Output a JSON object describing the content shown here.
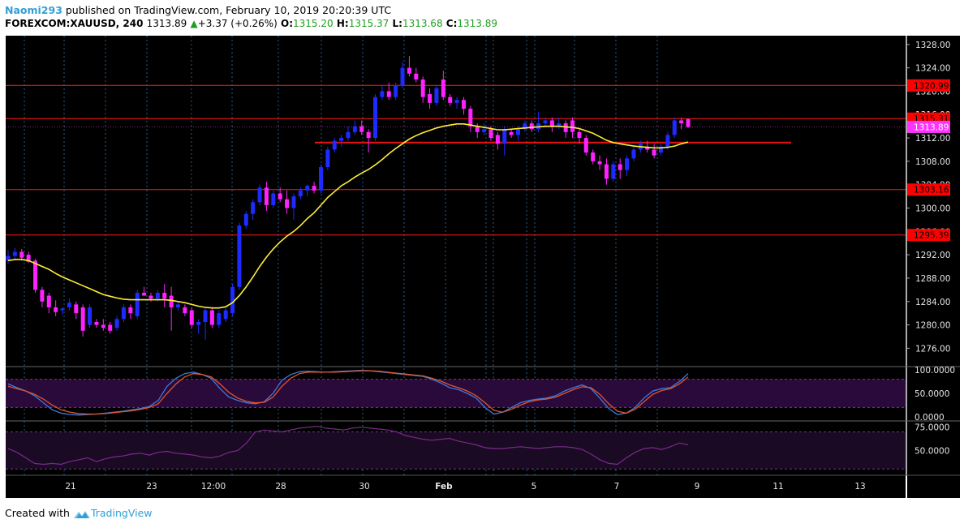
{
  "header": {
    "author": "Naomi293",
    "published_text": "published on TradingView.com, February 10, 2019 20:20:39 UTC",
    "symbol": "FOREXCOM:XAUUSD, 240",
    "last": "1313.89",
    "change_arrow": "▲",
    "change": "+3.37 (+0.26%)",
    "o_label": "O:",
    "o_value": "1315.20",
    "h_label": "H:",
    "h_value": "1315.37",
    "l_label": "L:",
    "l_value": "1313.68",
    "c_label": "C:",
    "c_value": "1313.89"
  },
  "footer": {
    "created_with": "Created with",
    "brand": "TradingView"
  },
  "colors": {
    "background": "#000000",
    "bull": "#1e2bff",
    "bear": "#ff22ff",
    "ma": "#ffee33",
    "level_line": "#ff1a1a",
    "level_label_bg": "#ff0000",
    "current_price_bg": "#ff33ff",
    "stoch_k": "#3d7bdb",
    "stoch_d": "#e0552b",
    "stoch_band": "#2a0a3a",
    "rsi_line": "#7a2a8a",
    "rsi_band": "#1a0a24",
    "grid_vertical": "#2a5d8a"
  },
  "chart_data": [
    {
      "type": "candlestick",
      "title": "XAUUSD 240",
      "x_tick_labels": [
        "21",
        "23",
        "12:00",
        "28",
        "30",
        "Feb",
        "5",
        "7",
        "9",
        "11",
        "13"
      ],
      "y_tick_labels": [
        "1276.00",
        "1280.00",
        "1284.00",
        "1288.00",
        "1292.00",
        "1296.00",
        "1300.00",
        "1304.00",
        "1308.00",
        "1312.00",
        "1316.00",
        "1320.00",
        "1324.00",
        "1328.00"
      ],
      "ylim": [
        1273.0,
        1329.5
      ],
      "horizontal_levels": [
        1320.99,
        1315.31,
        1303.16,
        1295.39
      ],
      "level_labels": [
        "1320.99",
        "1315.31",
        "1303.16",
        "1295.39"
      ],
      "current_price_label": "1313.89",
      "current_price": 1313.89,
      "short_level": 1311.2,
      "ohlc": [
        [
          1291.0,
          1292.8,
          1290.5,
          1291.8
        ],
        [
          1291.8,
          1293.2,
          1291.0,
          1292.5
        ],
        [
          1292.5,
          1293.0,
          1291.0,
          1291.5
        ],
        [
          1292.0,
          1292.5,
          1290.6,
          1290.8
        ],
        [
          1291.0,
          1291.3,
          1285.5,
          1286.0
        ],
        [
          1286.0,
          1286.5,
          1283.0,
          1284.0
        ],
        [
          1285.0,
          1285.5,
          1282.0,
          1283.0
        ],
        [
          1283.0,
          1284.2,
          1281.5,
          1282.2
        ],
        [
          1282.5,
          1283.0,
          1281.7,
          1282.8
        ],
        [
          1283.0,
          1284.5,
          1282.5,
          1283.8
        ],
        [
          1283.5,
          1284.0,
          1281.0,
          1282.0
        ],
        [
          1283.0,
          1283.5,
          1278.0,
          1279.0
        ],
        [
          1280.0,
          1283.5,
          1279.5,
          1283.0
        ],
        [
          1280.5,
          1281.0,
          1279.5,
          1280.0
        ],
        [
          1280.0,
          1281.0,
          1279.0,
          1279.5
        ],
        [
          1280.0,
          1280.5,
          1278.5,
          1279.0
        ],
        [
          1279.5,
          1281.5,
          1279.0,
          1281.0
        ],
        [
          1281.0,
          1283.5,
          1280.5,
          1283.0
        ],
        [
          1283.0,
          1283.5,
          1281.0,
          1282.0
        ],
        [
          1281.5,
          1286.0,
          1281.0,
          1285.5
        ],
        [
          1285.5,
          1286.5,
          1285.0,
          1285.0
        ],
        [
          1285.0,
          1285.5,
          1284.0,
          1284.5
        ],
        [
          1284.5,
          1286.0,
          1284.0,
          1285.5
        ],
        [
          1285.5,
          1287.0,
          1283.0,
          1284.5
        ],
        [
          1285.0,
          1286.5,
          1279.0,
          1283.0
        ],
        [
          1283.0,
          1284.0,
          1282.5,
          1283.5
        ],
        [
          1283.0,
          1283.5,
          1281.5,
          1282.0
        ],
        [
          1282.5,
          1283.0,
          1279.5,
          1280.0
        ],
        [
          1280.0,
          1281.0,
          1278.5,
          1280.5
        ],
        [
          1280.5,
          1283.0,
          1277.5,
          1282.5
        ],
        [
          1282.5,
          1283.0,
          1279.5,
          1280.0
        ],
        [
          1280.0,
          1282.5,
          1279.5,
          1282.0
        ],
        [
          1281.0,
          1283.0,
          1280.5,
          1282.5
        ],
        [
          1282.0,
          1287.0,
          1281.5,
          1286.5
        ],
        [
          1286.5,
          1297.5,
          1286.0,
          1297.0
        ],
        [
          1297.0,
          1299.5,
          1296.5,
          1299.0
        ],
        [
          1299.0,
          1301.5,
          1298.0,
          1301.0
        ],
        [
          1301.0,
          1304.0,
          1300.5,
          1303.5
        ],
        [
          1303.5,
          1304.5,
          1299.5,
          1300.5
        ],
        [
          1300.5,
          1303.0,
          1300.0,
          1302.5
        ],
        [
          1302.5,
          1303.5,
          1301.0,
          1301.5
        ],
        [
          1301.5,
          1303.0,
          1299.0,
          1300.0
        ],
        [
          1300.0,
          1302.5,
          1298.0,
          1302.0
        ],
        [
          1302.0,
          1303.5,
          1301.5,
          1303.0
        ],
        [
          1303.0,
          1304.0,
          1302.0,
          1303.8
        ],
        [
          1303.8,
          1304.5,
          1302.5,
          1303.0
        ],
        [
          1303.0,
          1307.5,
          1302.5,
          1307.0
        ],
        [
          1307.0,
          1310.5,
          1306.5,
          1310.0
        ],
        [
          1310.0,
          1312.0,
          1309.5,
          1311.5
        ],
        [
          1311.5,
          1312.5,
          1310.5,
          1312.0
        ],
        [
          1312.0,
          1314.0,
          1311.5,
          1313.0
        ],
        [
          1313.0,
          1315.0,
          1312.5,
          1314.0
        ],
        [
          1314.0,
          1315.0,
          1312.5,
          1313.0
        ],
        [
          1313.0,
          1313.5,
          1309.5,
          1312.0
        ],
        [
          1312.0,
          1319.5,
          1311.5,
          1319.0
        ],
        [
          1319.0,
          1321.0,
          1318.5,
          1320.0
        ],
        [
          1320.0,
          1321.5,
          1318.5,
          1319.0
        ],
        [
          1319.0,
          1321.5,
          1318.5,
          1321.0
        ],
        [
          1321.0,
          1325.0,
          1320.5,
          1324.0
        ],
        [
          1324.0,
          1326.0,
          1322.5,
          1323.0
        ],
        [
          1323.0,
          1324.0,
          1321.5,
          1322.0
        ],
        [
          1322.0,
          1322.5,
          1318.0,
          1319.0
        ],
        [
          1319.5,
          1320.5,
          1317.0,
          1318.0
        ],
        [
          1318.0,
          1321.0,
          1317.5,
          1320.5
        ],
        [
          1322.0,
          1323.5,
          1318.5,
          1319.0
        ],
        [
          1319.0,
          1319.5,
          1317.5,
          1318.0
        ],
        [
          1318.0,
          1319.0,
          1317.0,
          1318.5
        ],
        [
          1318.5,
          1319.0,
          1316.0,
          1317.0
        ],
        [
          1317.0,
          1317.5,
          1313.0,
          1314.0
        ],
        [
          1314.0,
          1314.5,
          1312.0,
          1313.0
        ],
        [
          1313.0,
          1314.5,
          1312.5,
          1313.5
        ],
        [
          1313.5,
          1314.0,
          1311.5,
          1312.0
        ],
        [
          1312.5,
          1313.0,
          1310.0,
          1311.0
        ],
        [
          1311.0,
          1314.0,
          1309.0,
          1313.5
        ],
        [
          1313.0,
          1313.5,
          1312.0,
          1312.5
        ],
        [
          1312.5,
          1314.0,
          1311.5,
          1313.5
        ],
        [
          1313.5,
          1315.0,
          1313.0,
          1314.5
        ],
        [
          1314.5,
          1315.0,
          1313.0,
          1313.5
        ],
        [
          1313.5,
          1316.5,
          1313.0,
          1314.5
        ],
        [
          1314.5,
          1315.5,
          1314.0,
          1315.0
        ],
        [
          1315.0,
          1315.5,
          1313.0,
          1314.0
        ],
        [
          1314.0,
          1315.5,
          1313.5,
          1314.5
        ],
        [
          1314.5,
          1315.0,
          1312.0,
          1313.0
        ],
        [
          1315.0,
          1315.5,
          1312.0,
          1313.0
        ],
        [
          1313.0,
          1313.5,
          1311.0,
          1312.0
        ],
        [
          1312.0,
          1312.5,
          1309.0,
          1309.5
        ],
        [
          1309.5,
          1310.0,
          1307.5,
          1308.0
        ],
        [
          1308.0,
          1309.0,
          1306.5,
          1307.5
        ],
        [
          1307.5,
          1308.5,
          1304.0,
          1305.0
        ],
        [
          1305.0,
          1308.0,
          1304.5,
          1307.5
        ],
        [
          1307.5,
          1308.5,
          1305.0,
          1306.5
        ],
        [
          1306.5,
          1309.0,
          1305.5,
          1308.5
        ],
        [
          1308.5,
          1310.5,
          1308.0,
          1310.0
        ],
        [
          1310.0,
          1311.5,
          1309.5,
          1311.0
        ],
        [
          1310.5,
          1311.5,
          1309.5,
          1310.0
        ],
        [
          1310.0,
          1311.0,
          1308.5,
          1309.0
        ],
        [
          1309.5,
          1311.0,
          1309.0,
          1310.5
        ],
        [
          1310.5,
          1313.0,
          1310.0,
          1312.5
        ],
        [
          1312.5,
          1315.5,
          1312.0,
          1315.0
        ],
        [
          1315.0,
          1315.5,
          1313.5,
          1314.5
        ],
        [
          1315.2,
          1315.37,
          1313.68,
          1313.89
        ]
      ],
      "ma_series": [
        1291.0,
        1291.2,
        1291.2,
        1291.0,
        1290.5,
        1290.0,
        1289.5,
        1288.8,
        1288.2,
        1287.7,
        1287.2,
        1286.7,
        1286.2,
        1285.7,
        1285.2,
        1284.9,
        1284.6,
        1284.4,
        1284.3,
        1284.3,
        1284.3,
        1284.3,
        1284.3,
        1284.3,
        1284.2,
        1284.0,
        1283.8,
        1283.5,
        1283.2,
        1283.0,
        1282.9,
        1282.9,
        1283.1,
        1283.8,
        1285.0,
        1286.5,
        1288.2,
        1290.0,
        1291.6,
        1293.0,
        1294.2,
        1295.2,
        1296.0,
        1297.0,
        1298.2,
        1299.2,
        1300.5,
        1301.8,
        1302.8,
        1303.8,
        1304.5,
        1305.3,
        1306.0,
        1306.6,
        1307.4,
        1308.3,
        1309.3,
        1310.2,
        1311.0,
        1311.8,
        1312.4,
        1312.9,
        1313.3,
        1313.7,
        1314.0,
        1314.2,
        1314.4,
        1314.4,
        1314.2,
        1314.0,
        1313.8,
        1313.6,
        1313.4,
        1313.4,
        1313.5,
        1313.6,
        1313.7,
        1313.8,
        1313.9,
        1314.0,
        1314.0,
        1314.0,
        1313.9,
        1313.8,
        1313.6,
        1313.2,
        1312.8,
        1312.2,
        1311.6,
        1311.2,
        1311.0,
        1310.8,
        1310.6,
        1310.5,
        1310.4,
        1310.3,
        1310.3,
        1310.4,
        1310.6,
        1311.0,
        1311.3
      ]
    },
    {
      "type": "line",
      "title": "Stochastic",
      "y_tick_labels": [
        "100.0000",
        "50.0000",
        "0.0000"
      ],
      "ylim": [
        0,
        100
      ],
      "band": [
        20,
        80
      ],
      "series": [
        {
          "values": [
            70,
            62,
            55,
            45,
            30,
            15,
            8,
            5,
            4,
            5,
            6,
            8,
            10,
            12,
            15,
            18,
            22,
            35,
            65,
            82,
            92,
            95,
            90,
            82,
            60,
            42,
            35,
            30,
            28,
            32,
            50,
            78,
            90,
            96,
            97,
            96,
            95,
            96,
            97,
            98,
            99,
            98,
            96,
            94,
            92,
            90,
            88,
            86,
            80,
            72,
            62,
            58,
            50,
            40,
            20,
            6,
            10,
            20,
            30,
            35,
            38,
            40,
            45,
            55,
            62,
            68,
            60,
            40,
            18,
            5,
            8,
            20,
            40,
            55,
            60,
            62,
            75,
            92
          ]
        },
        {
          "values": [
            65,
            60,
            55,
            48,
            38,
            25,
            15,
            10,
            7,
            6,
            6,
            7,
            9,
            11,
            13,
            16,
            20,
            28,
            50,
            70,
            85,
            92,
            90,
            85,
            70,
            52,
            40,
            33,
            30,
            31,
            42,
            65,
            82,
            92,
            95,
            95,
            95,
            95,
            96,
            97,
            98,
            98,
            97,
            95,
            93,
            91,
            89,
            87,
            82,
            76,
            68,
            62,
            55,
            45,
            30,
            14,
            10,
            16,
            25,
            32,
            36,
            38,
            42,
            50,
            58,
            64,
            62,
            48,
            28,
            12,
            8,
            16,
            32,
            48,
            56,
            60,
            70,
            85
          ]
        }
      ]
    },
    {
      "type": "line",
      "title": "RSI",
      "y_tick_labels": [
        "75.0000",
        "50.0000"
      ],
      "ylim": [
        25,
        80
      ],
      "band": [
        30,
        70
      ],
      "series": [
        {
          "values": [
            52,
            48,
            42,
            36,
            35,
            36,
            35,
            38,
            40,
            42,
            38,
            41,
            43,
            44,
            46,
            47,
            45,
            48,
            49,
            47,
            46,
            45,
            43,
            42,
            44,
            48,
            50,
            58,
            70,
            72,
            71,
            70,
            72,
            74,
            75,
            76,
            74,
            73,
            72,
            74,
            75,
            74,
            73,
            72,
            70,
            66,
            64,
            62,
            61,
            62,
            63,
            60,
            58,
            56,
            53,
            52,
            52,
            53,
            54,
            53,
            52,
            53,
            54,
            54,
            53,
            51,
            46,
            40,
            36,
            35,
            42,
            48,
            52,
            53,
            51,
            54,
            58,
            56
          ]
        }
      ]
    }
  ]
}
